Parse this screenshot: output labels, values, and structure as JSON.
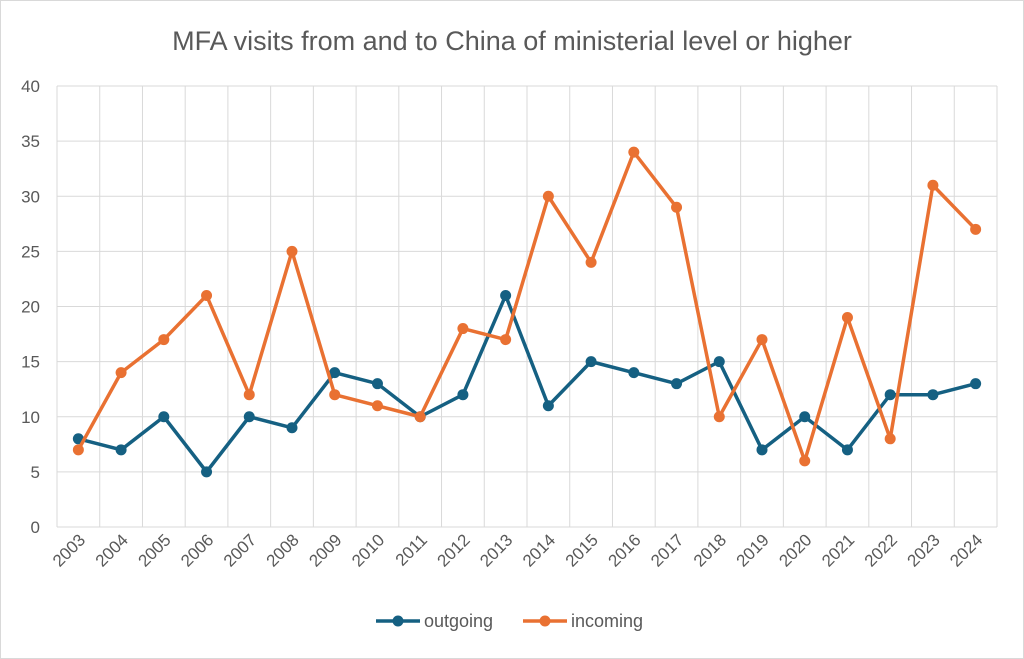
{
  "chart_data": {
    "type": "line",
    "title": "MFA visits from and to China of ministerial level or higher",
    "xlabel": "",
    "ylabel": "",
    "categories": [
      "2003",
      "2004",
      "2005",
      "2006",
      "2007",
      "2008",
      "2009",
      "2010",
      "2011",
      "2012",
      "2013",
      "2014",
      "2015",
      "2016",
      "2017",
      "2018",
      "2019",
      "2020",
      "2021",
      "2022",
      "2023",
      "2024"
    ],
    "yticks": [
      "0",
      "5",
      "10",
      "15",
      "20",
      "25",
      "30",
      "35",
      "40"
    ],
    "ylim": [
      0,
      40
    ],
    "grid": true,
    "legend_position": "bottom",
    "series": [
      {
        "name": "outgoing",
        "color": "#156082",
        "values": [
          8,
          7,
          10,
          5,
          10,
          9,
          14,
          13,
          10,
          12,
          21,
          11,
          15,
          14,
          13,
          15,
          7,
          10,
          7,
          12,
          12,
          13
        ]
      },
      {
        "name": "incoming",
        "color": "#E97132",
        "values": [
          7,
          14,
          17,
          21,
          12,
          25,
          12,
          11,
          10,
          18,
          17,
          30,
          24,
          34,
          29,
          10,
          17,
          6,
          19,
          8,
          31,
          27
        ]
      }
    ]
  }
}
